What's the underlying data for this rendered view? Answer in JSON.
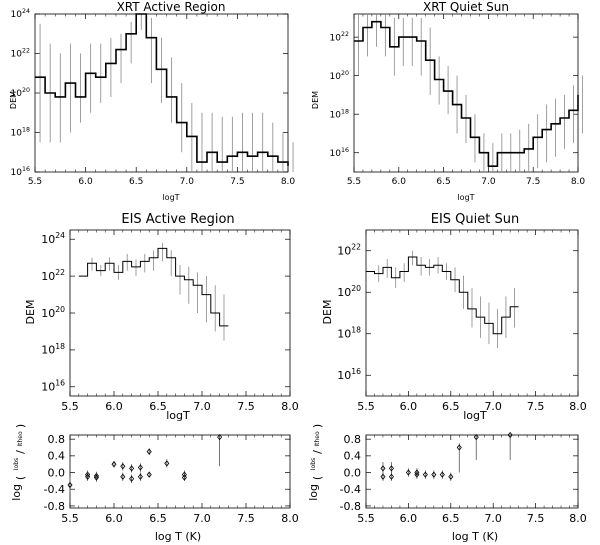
{
  "chart_data": [
    {
      "id": "xrt-ar",
      "type": "line",
      "title": "XRT Active Region",
      "xlabel": "logT",
      "ylabel": "DEM",
      "xlim": [
        5.5,
        8.0
      ],
      "ylim_log10": [
        16,
        24
      ],
      "y_scale": "log",
      "x_ticks": [
        "5.5",
        "6.0",
        "6.5",
        "7.0",
        "7.5",
        "8.0"
      ],
      "y_tick_exponents": [
        "16",
        "18",
        "20",
        "22",
        "24"
      ],
      "y_tick_values": [
        16,
        18,
        20,
        22,
        24
      ],
      "x": [
        5.5,
        5.6,
        5.7,
        5.8,
        5.9,
        6.0,
        6.1,
        6.2,
        6.3,
        6.4,
        6.5,
        6.6,
        6.7,
        6.8,
        6.9,
        7.0,
        7.1,
        7.2,
        7.3,
        7.4,
        7.5,
        7.6,
        7.7,
        7.8,
        7.9,
        8.0
      ],
      "log_dem": [
        20.8,
        20.0,
        19.8,
        20.5,
        19.8,
        21.0,
        20.8,
        21.5,
        22.2,
        23.0,
        24.0,
        22.8,
        21.2,
        19.8,
        18.5,
        17.8,
        16.5,
        17.0,
        16.5,
        16.8,
        17.0,
        16.8,
        17.0,
        16.8,
        16.5,
        16.3
      ],
      "err_low": [
        17.5,
        17.5,
        17.5,
        18.0,
        18.5,
        19.0,
        19.5,
        19.8,
        20.5,
        21.5,
        23.2,
        20.5,
        19.5,
        18.5,
        17.0,
        16.0,
        16.0,
        16.0,
        16.0,
        16.0,
        16.0,
        16.0,
        16.0,
        16.0,
        16.0,
        16.0
      ],
      "err_high": [
        23.5,
        22.5,
        22.0,
        22.5,
        22.0,
        22.5,
        22.5,
        22.8,
        23.0,
        23.6,
        24.0,
        23.8,
        22.8,
        21.8,
        20.5,
        19.5,
        19.0,
        19.0,
        18.8,
        18.8,
        19.0,
        19.0,
        19.0,
        18.5,
        18.0,
        17.5
      ]
    },
    {
      "id": "xrt-qs",
      "type": "line",
      "title": "XRT Quiet Sun",
      "xlabel": "logT",
      "ylabel": "DEM",
      "xlim": [
        5.5,
        8.0
      ],
      "ylim_log10": [
        15,
        23.2
      ],
      "y_scale": "log",
      "x_ticks": [
        "5.5",
        "6.0",
        "6.5",
        "7.0",
        "7.5",
        "8.0"
      ],
      "y_tick_exponents": [
        "16",
        "18",
        "20",
        "22"
      ],
      "y_tick_values": [
        16,
        18,
        20,
        22
      ],
      "x": [
        5.5,
        5.6,
        5.7,
        5.8,
        5.9,
        6.0,
        6.1,
        6.2,
        6.3,
        6.4,
        6.5,
        6.6,
        6.7,
        6.8,
        6.9,
        7.0,
        7.1,
        7.2,
        7.3,
        7.4,
        7.5,
        7.6,
        7.7,
        7.8,
        7.9,
        8.0
      ],
      "log_dem": [
        21.8,
        22.5,
        22.8,
        22.5,
        21.5,
        22.0,
        22.0,
        21.8,
        20.8,
        19.8,
        19.2,
        18.5,
        17.8,
        16.8,
        16.0,
        15.3,
        16.0,
        16.0,
        16.0,
        16.2,
        16.8,
        17.2,
        17.5,
        17.8,
        18.2,
        19.0
      ],
      "err_low": [
        20.0,
        21.0,
        21.5,
        21.0,
        20.0,
        20.5,
        20.5,
        20.0,
        19.0,
        18.5,
        18.0,
        17.0,
        16.5,
        15.5,
        15.0,
        15.0,
        15.0,
        15.0,
        15.0,
        15.0,
        15.2,
        15.5,
        15.8,
        16.2,
        16.5,
        17.0
      ],
      "err_high": [
        23.2,
        23.2,
        23.2,
        23.2,
        23.0,
        23.0,
        23.0,
        23.0,
        22.5,
        21.0,
        20.5,
        20.0,
        19.0,
        18.0,
        17.0,
        16.5,
        17.0,
        17.0,
        17.2,
        17.5,
        18.0,
        18.5,
        18.8,
        19.0,
        19.5,
        20.0
      ]
    },
    {
      "id": "eis-ar",
      "type": "line",
      "title": "EIS Active Region",
      "xlabel": "logT",
      "ylabel": "DEM",
      "xlim": [
        5.5,
        8.0
      ],
      "ylim_log10": [
        15.5,
        24.5
      ],
      "y_scale": "log",
      "x_ticks": [
        "5.5",
        "6.0",
        "6.5",
        "7.0",
        "7.5",
        "8.0"
      ],
      "y_tick_exponents": [
        "16",
        "18",
        "20",
        "22",
        "24"
      ],
      "y_tick_values": [
        16,
        18,
        20,
        22,
        24
      ],
      "x": [
        5.6,
        5.7,
        5.8,
        5.9,
        6.0,
        6.1,
        6.2,
        6.3,
        6.4,
        6.5,
        6.6,
        6.7,
        6.8,
        6.9,
        7.0,
        7.1,
        7.2
      ],
      "log_dem": [
        22.0,
        22.7,
        22.3,
        22.7,
        22.2,
        22.8,
        22.5,
        22.8,
        23.0,
        23.5,
        23.0,
        22.0,
        21.8,
        21.5,
        21.0,
        20.0,
        19.3
      ],
      "err_low": [
        22.0,
        22.3,
        22.0,
        22.3,
        21.8,
        22.3,
        22.0,
        22.2,
        22.3,
        22.8,
        22.0,
        21.0,
        20.5,
        20.0,
        19.5,
        19.0,
        18.5
      ],
      "err_high": [
        22.0,
        23.0,
        22.6,
        23.0,
        22.6,
        23.2,
        22.9,
        23.2,
        23.4,
        23.8,
        23.4,
        22.6,
        22.5,
        22.2,
        22.0,
        21.5,
        21.0
      ]
    },
    {
      "id": "eis-qs",
      "type": "line",
      "title": "EIS Quiet Sun",
      "xlabel": "logT",
      "ylabel": "DEM",
      "xlim": [
        5.5,
        8.0
      ],
      "ylim_log10": [
        15.0,
        23.0
      ],
      "y_scale": "log",
      "x_ticks": [
        "5.5",
        "6.0",
        "6.5",
        "7.0",
        "7.5",
        "8.0"
      ],
      "y_tick_exponents": [
        "16",
        "18",
        "20",
        "22"
      ],
      "y_tick_values": [
        16,
        18,
        20,
        22
      ],
      "x": [
        5.5,
        5.6,
        5.7,
        5.8,
        5.9,
        6.0,
        6.1,
        6.2,
        6.3,
        6.4,
        6.5,
        6.6,
        6.7,
        6.8,
        6.9,
        7.0,
        7.1,
        7.2
      ],
      "log_dem": [
        21.0,
        20.9,
        21.2,
        20.7,
        21.0,
        21.7,
        21.3,
        21.2,
        21.3,
        21.0,
        20.6,
        20.0,
        19.2,
        18.8,
        18.5,
        18.0,
        18.8,
        19.3
      ],
      "err_low": [
        21.0,
        20.5,
        20.7,
        20.2,
        20.5,
        21.3,
        20.8,
        20.8,
        20.9,
        20.6,
        20.0,
        19.2,
        18.3,
        17.8,
        17.5,
        17.3,
        17.8,
        18.3
      ],
      "err_high": [
        21.0,
        21.3,
        21.6,
        21.2,
        21.4,
        22.0,
        21.7,
        21.6,
        21.7,
        21.4,
        21.2,
        20.8,
        20.2,
        19.8,
        19.5,
        19.2,
        19.8,
        20.2
      ]
    },
    {
      "id": "ratio-ar",
      "type": "scatter",
      "xlabel": "log T (K)",
      "ylabel": "log (I_obs/I_theo)",
      "ylabel_parts": {
        "prefix": "log",
        "num": "Iobs",
        "den": "Itheo"
      },
      "xlim": [
        5.5,
        8.0
      ],
      "ylim": [
        -0.85,
        0.9
      ],
      "x_ticks": [
        "5.5",
        "6.0",
        "6.5",
        "7.0",
        "7.5",
        "8.0"
      ],
      "y_tick_labels": [
        "-0.8",
        "-0.4",
        "0.0",
        "0.4",
        "0.8"
      ],
      "y_tick_values": [
        -0.8,
        -0.4,
        0.0,
        0.4,
        0.8
      ],
      "x": [
        5.5,
        5.7,
        5.7,
        5.8,
        5.8,
        6.0,
        6.1,
        6.1,
        6.2,
        6.2,
        6.3,
        6.3,
        6.4,
        6.4,
        6.6,
        6.8,
        6.8,
        7.2
      ],
      "y": [
        -0.3,
        -0.05,
        -0.1,
        -0.08,
        -0.12,
        0.2,
        0.15,
        -0.1,
        0.1,
        -0.15,
        0.12,
        -0.1,
        0.5,
        -0.05,
        0.22,
        -0.05,
        -0.12,
        0.85
      ],
      "err_low": [
        -0.5,
        -0.15,
        -0.2,
        -0.18,
        -0.22,
        0.12,
        0.05,
        -0.2,
        0.0,
        -0.25,
        0.02,
        -0.2,
        0.42,
        -0.12,
        0.12,
        -0.15,
        -0.2,
        0.15
      ],
      "err_high": [
        -0.1,
        0.05,
        0.0,
        0.02,
        -0.02,
        0.28,
        0.25,
        0.0,
        0.2,
        -0.05,
        0.22,
        0.0,
        0.58,
        0.02,
        0.32,
        0.05,
        -0.04,
        0.9
      ]
    },
    {
      "id": "ratio-qs",
      "type": "scatter",
      "xlabel": "log T (K)",
      "ylabel": "log (I_obs/I_theo)",
      "ylabel_parts": {
        "prefix": "log",
        "num": "Iobs",
        "den": "Itheo"
      },
      "xlim": [
        5.5,
        8.0
      ],
      "ylim": [
        -0.85,
        0.9
      ],
      "x_ticks": [
        "5.5",
        "6.0",
        "6.5",
        "7.0",
        "7.5",
        "8.0"
      ],
      "y_tick_labels": [
        "-0.8",
        "-0.4",
        "0.0",
        "0.4",
        "0.8"
      ],
      "y_tick_values": [
        -0.8,
        -0.4,
        0.0,
        0.4,
        0.8
      ],
      "x": [
        5.7,
        5.7,
        5.8,
        5.8,
        6.0,
        6.1,
        6.1,
        6.2,
        6.3,
        6.4,
        6.5,
        6.6,
        6.8,
        7.2
      ],
      "y": [
        0.1,
        -0.1,
        0.1,
        -0.1,
        0.0,
        -0.05,
        0.0,
        -0.05,
        -0.05,
        -0.05,
        -0.1,
        0.6,
        0.85,
        0.9
      ],
      "err_low": [
        -0.05,
        -0.2,
        -0.05,
        -0.2,
        -0.1,
        -0.15,
        -0.1,
        -0.15,
        -0.15,
        -0.15,
        -0.2,
        0.0,
        0.3,
        0.3
      ],
      "err_high": [
        0.25,
        0.0,
        0.25,
        0.0,
        0.1,
        0.05,
        0.1,
        0.05,
        0.05,
        0.05,
        0.0,
        0.7,
        0.9,
        0.9
      ]
    }
  ]
}
